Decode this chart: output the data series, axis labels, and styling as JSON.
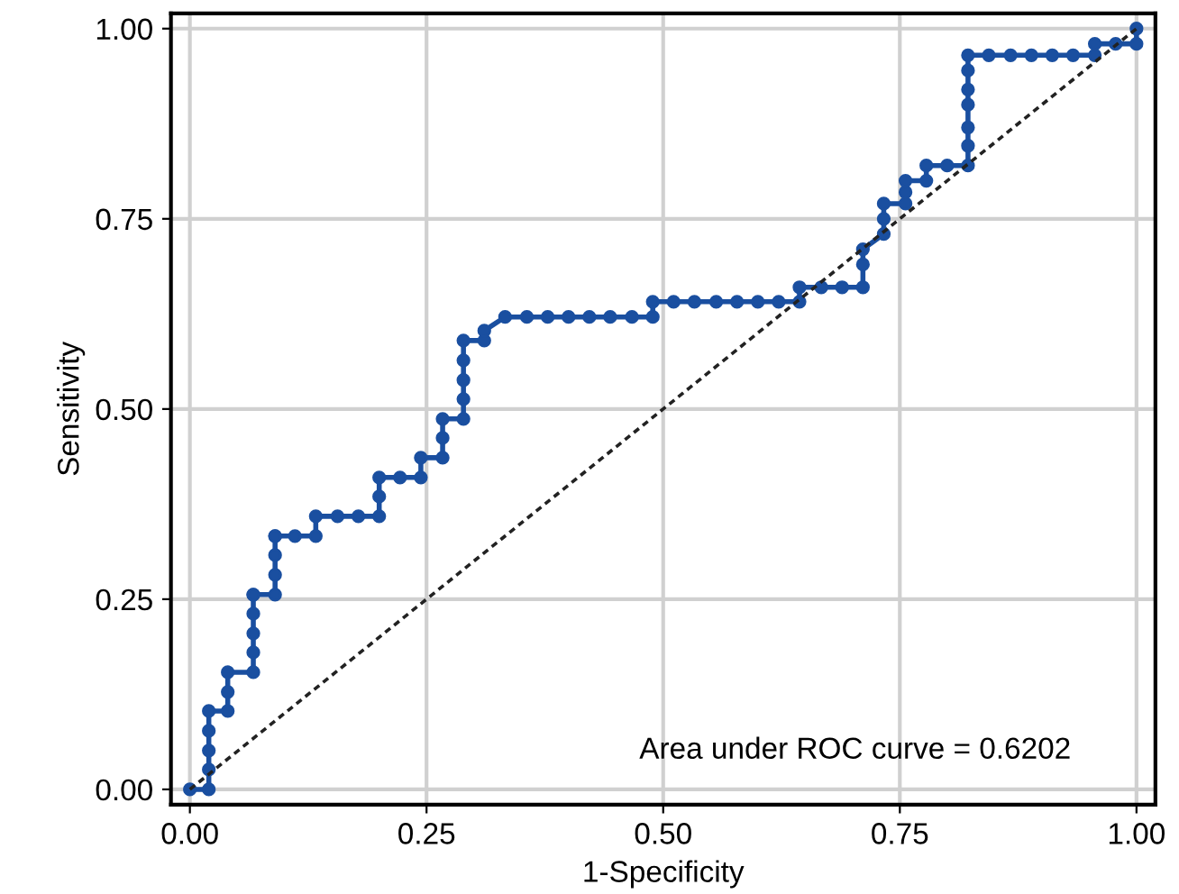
{
  "chart_data": {
    "type": "line",
    "xlabel": "1-Specificity",
    "ylabel": "Sensitivity",
    "annotations": [
      "Area under ROC curve = 0.6202"
    ],
    "xlim": [
      -0.02,
      1.02
    ],
    "ylim": [
      -0.02,
      1.02
    ],
    "xticks": [
      {
        "value": 0,
        "label": "0.00"
      },
      {
        "value": 0.25,
        "label": "0.25"
      },
      {
        "value": 0.5,
        "label": "0.50"
      },
      {
        "value": 0.75,
        "label": "0.75"
      },
      {
        "value": 1,
        "label": "1.00"
      }
    ],
    "yticks": [
      {
        "value": 0,
        "label": "0.00"
      },
      {
        "value": 0.25,
        "label": "0.25"
      },
      {
        "value": 0.5,
        "label": "0.50"
      },
      {
        "value": 0.75,
        "label": "0.75"
      },
      {
        "value": 1,
        "label": "1.00"
      }
    ],
    "grid": true,
    "series": [
      {
        "color": "#1a4fa0",
        "marker": "circle",
        "line_style": "solid",
        "x": [
          0,
          0.02,
          0.02,
          0.02,
          0.02,
          0.02,
          0.04,
          0.04,
          0.04,
          0.067,
          0.067,
          0.067,
          0.067,
          0.067,
          0.067,
          0.09,
          0.09,
          0.09,
          0.09,
          0.09,
          0.111,
          0.133,
          0.133,
          0.156,
          0.178,
          0.2,
          0.2,
          0.2,
          0.222,
          0.244,
          0.244,
          0.267,
          0.267,
          0.267,
          0.289,
          0.289,
          0.289,
          0.289,
          0.289,
          0.311,
          0.311,
          0.333,
          0.356,
          0.378,
          0.4,
          0.422,
          0.444,
          0.467,
          0.489,
          0.489,
          0.511,
          0.533,
          0.556,
          0.578,
          0.6,
          0.622,
          0.644,
          0.644,
          0.667,
          0.689,
          0.711,
          0.711,
          0.711,
          0.733,
          0.733,
          0.733,
          0.756,
          0.756,
          0.756,
          0.778,
          0.778,
          0.8,
          0.822,
          0.822,
          0.822,
          0.822,
          0.822,
          0.822,
          0.822,
          0.844,
          0.867,
          0.889,
          0.911,
          0.933,
          0.956,
          0.956,
          0.978,
          1.0,
          1.0
        ],
        "values": [
          0,
          0,
          0.026,
          0.051,
          0.077,
          0.103,
          0.103,
          0.128,
          0.154,
          0.154,
          0.18,
          0.205,
          0.231,
          0.256,
          0.256,
          0.256,
          0.282,
          0.308,
          0.333,
          0.333,
          0.333,
          0.333,
          0.359,
          0.359,
          0.359,
          0.359,
          0.385,
          0.41,
          0.41,
          0.41,
          0.436,
          0.436,
          0.462,
          0.487,
          0.487,
          0.513,
          0.538,
          0.564,
          0.59,
          0.59,
          0.603,
          0.621,
          0.621,
          0.621,
          0.621,
          0.621,
          0.621,
          0.621,
          0.621,
          0.641,
          0.641,
          0.641,
          0.641,
          0.641,
          0.641,
          0.641,
          0.641,
          0.66,
          0.66,
          0.66,
          0.66,
          0.69,
          0.71,
          0.73,
          0.75,
          0.77,
          0.77,
          0.785,
          0.8,
          0.8,
          0.82,
          0.82,
          0.82,
          0.846,
          0.87,
          0.9,
          0.92,
          0.945,
          0.965,
          0.965,
          0.965,
          0.965,
          0.965,
          0.965,
          0.965,
          0.98,
          0.98,
          0.98,
          1.0
        ]
      },
      {
        "color": "#222222",
        "marker": "none",
        "line_style": "dotted",
        "x": [
          0,
          1
        ],
        "values": [
          0,
          1
        ]
      }
    ]
  }
}
